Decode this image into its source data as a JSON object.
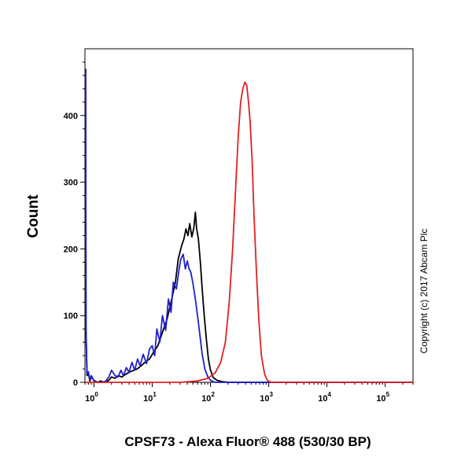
{
  "chart_data": {
    "type": "line",
    "xlabel": "CPSF73 - Alexa Fluor® 488 (530/30 BP)",
    "ylabel": "Count",
    "x_scale": "log",
    "xlim": [
      0.7,
      300000
    ],
    "ylim": [
      0,
      500
    ],
    "x_ticks": [
      {
        "value": 1,
        "base": "10",
        "exp": "0"
      },
      {
        "value": 10,
        "base": "10",
        "exp": "1"
      },
      {
        "value": 100,
        "base": "10",
        "exp": "2"
      },
      {
        "value": 1000,
        "base": "10",
        "exp": "3"
      },
      {
        "value": 10000,
        "base": "10",
        "exp": "4"
      },
      {
        "value": 100000,
        "base": "10",
        "exp": "5"
      }
    ],
    "y_ticks": [
      {
        "value": 0,
        "label": "0"
      },
      {
        "value": 100,
        "label": "100"
      },
      {
        "value": 200,
        "label": "200"
      },
      {
        "value": 300,
        "label": "300"
      },
      {
        "value": 400,
        "label": "400"
      }
    ],
    "grid": false,
    "annotation": "Copyright (c) 2017 Abcam Plc",
    "series": [
      {
        "color": "#000000",
        "points": [
          [
            0.72,
            470
          ],
          [
            0.73,
            80
          ],
          [
            0.76,
            10
          ],
          [
            0.8,
            14
          ],
          [
            0.85,
            2
          ],
          [
            0.9,
            8
          ],
          [
            1.0,
            3
          ],
          [
            1.15,
            0
          ],
          [
            1.3,
            2
          ],
          [
            1.5,
            0
          ],
          [
            1.8,
            3
          ],
          [
            2.0,
            8
          ],
          [
            2.3,
            6
          ],
          [
            2.6,
            10
          ],
          [
            3.0,
            8
          ],
          [
            3.5,
            12
          ],
          [
            4.0,
            15
          ],
          [
            4.8,
            18
          ],
          [
            5.5,
            20
          ],
          [
            6.5,
            25
          ],
          [
            7.5,
            30
          ],
          [
            9.0,
            35
          ],
          [
            10.5,
            45
          ],
          [
            12.5,
            55
          ],
          [
            15.0,
            75
          ],
          [
            18.0,
            95
          ],
          [
            21.0,
            120
          ],
          [
            25.0,
            150
          ],
          [
            28.0,
            185
          ],
          [
            32.0,
            205
          ],
          [
            35.0,
            215
          ],
          [
            38.0,
            230
          ],
          [
            41.0,
            220
          ],
          [
            44.0,
            238
          ],
          [
            48.0,
            218
          ],
          [
            52.0,
            232
          ],
          [
            55.0,
            255
          ],
          [
            58.0,
            230
          ],
          [
            62.0,
            215
          ],
          [
            67.0,
            180
          ],
          [
            72.0,
            140
          ],
          [
            78.0,
            100
          ],
          [
            85.0,
            65
          ],
          [
            92.0,
            35
          ],
          [
            100.0,
            18
          ],
          [
            112.0,
            7
          ],
          [
            130.0,
            3
          ],
          [
            160.0,
            1
          ],
          [
            200.0,
            0
          ],
          [
            300000,
            0
          ]
        ]
      },
      {
        "color": "#1f1fcc",
        "points": [
          [
            0.72,
            470
          ],
          [
            0.73,
            80
          ],
          [
            0.76,
            12
          ],
          [
            0.8,
            16
          ],
          [
            0.85,
            4
          ],
          [
            0.9,
            10
          ],
          [
            1.0,
            2
          ],
          [
            1.15,
            0
          ],
          [
            1.4,
            0
          ],
          [
            1.6,
            2
          ],
          [
            1.8,
            8
          ],
          [
            2.0,
            18
          ],
          [
            2.3,
            10
          ],
          [
            2.6,
            8
          ],
          [
            2.9,
            18
          ],
          [
            3.2,
            10
          ],
          [
            3.6,
            22
          ],
          [
            4.0,
            15
          ],
          [
            4.5,
            30
          ],
          [
            5.0,
            18
          ],
          [
            5.6,
            35
          ],
          [
            6.2,
            25
          ],
          [
            7.0,
            42
          ],
          [
            8.0,
            28
          ],
          [
            9.0,
            50
          ],
          [
            10.0,
            55
          ],
          [
            11.0,
            40
          ],
          [
            12.0,
            80
          ],
          [
            13.5,
            60
          ],
          [
            15.0,
            100
          ],
          [
            17.0,
            78
          ],
          [
            19.0,
            125
          ],
          [
            21.0,
            105
          ],
          [
            23.0,
            150
          ],
          [
            26.0,
            140
          ],
          [
            29.0,
            170
          ],
          [
            31.0,
            185
          ],
          [
            34.0,
            192
          ],
          [
            37.0,
            170
          ],
          [
            40.0,
            182
          ],
          [
            43.0,
            170
          ],
          [
            46.0,
            165
          ],
          [
            50.0,
            148
          ],
          [
            55.0,
            125
          ],
          [
            60.0,
            100
          ],
          [
            66.0,
            70
          ],
          [
            72.0,
            42
          ],
          [
            80.0,
            20
          ],
          [
            90.0,
            8
          ],
          [
            100.0,
            3
          ],
          [
            120.0,
            0
          ],
          [
            300000,
            0
          ]
        ]
      },
      {
        "color": "#e02020",
        "points": [
          [
            0.7,
            0
          ],
          [
            30,
            0
          ],
          [
            60,
            2
          ],
          [
            90,
            6
          ],
          [
            120,
            14
          ],
          [
            150,
            30
          ],
          [
            180,
            60
          ],
          [
            210,
            120
          ],
          [
            240,
            200
          ],
          [
            270,
            290
          ],
          [
            300,
            370
          ],
          [
            330,
            420
          ],
          [
            360,
            440
          ],
          [
            390,
            450
          ],
          [
            420,
            445
          ],
          [
            450,
            420
          ],
          [
            480,
            390
          ],
          [
            520,
            330
          ],
          [
            560,
            250
          ],
          [
            620,
            160
          ],
          [
            680,
            90
          ],
          [
            750,
            40
          ],
          [
            850,
            12
          ],
          [
            950,
            3
          ],
          [
            1100,
            0
          ],
          [
            300000,
            0
          ]
        ]
      }
    ]
  }
}
